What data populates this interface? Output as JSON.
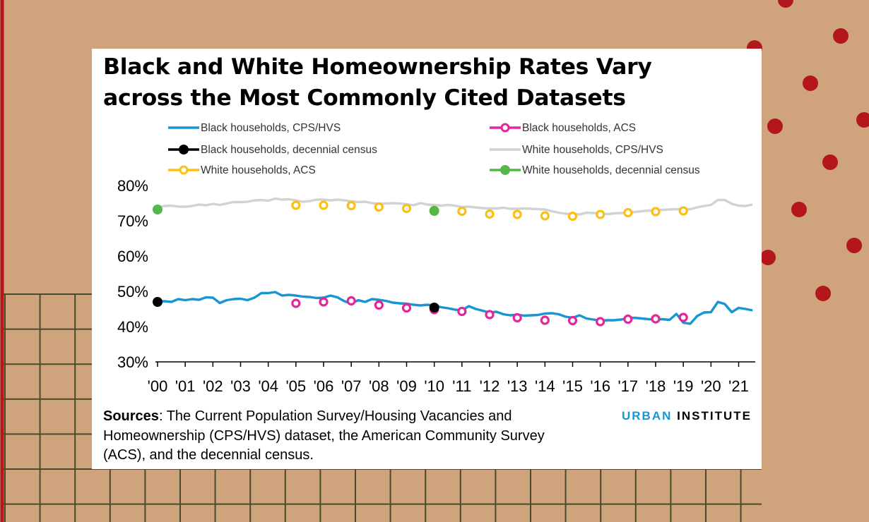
{
  "title": "Black and White Homeownership Rates Vary across the Most Commonly Cited Datasets",
  "sources": {
    "label": "Sources",
    "text": ": The Current Population Survey/Housing Vacancies and Homeownership (CPS/HVS) dataset, the American Community Survey (ACS), and the decennial census."
  },
  "logo": {
    "part1": "URBAN",
    "part2": "INSTITUTE"
  },
  "colors": {
    "black_cps": "#1696d2",
    "black_acs": "#e5259a",
    "black_census": "#000000",
    "white_cps": "#d2d2d2",
    "white_acs": "#fdbf11",
    "white_census": "#55b748",
    "background": "#cfa37c",
    "dots": "#b3161c"
  },
  "chart_data": {
    "type": "line",
    "title": "Black and White Homeownership Rates Vary across the Most Commonly Cited Datasets",
    "xlabel": "",
    "ylabel": "",
    "xlim": [
      2000,
      2021.6
    ],
    "ylim": [
      30,
      80
    ],
    "yticks": [
      30,
      40,
      50,
      60,
      70,
      80
    ],
    "ytick_labels": [
      "30%",
      "40%",
      "50%",
      "60%",
      "70%",
      "80%"
    ],
    "xticks": [
      2000,
      2001,
      2002,
      2003,
      2004,
      2005,
      2006,
      2007,
      2008,
      2009,
      2010,
      2011,
      2012,
      2013,
      2014,
      2015,
      2016,
      2017,
      2018,
      2019,
      2020,
      2021
    ],
    "xtick_labels": [
      "'00",
      "'01",
      "'02",
      "'03",
      "'04",
      "'05",
      "'06",
      "'07",
      "'08",
      "'09",
      "'10",
      "'11",
      "'12",
      "'13",
      "'14",
      "'15",
      "'16",
      "'17",
      "'18",
      "'19",
      "'20",
      "'21"
    ],
    "legend_position": "top",
    "series": [
      {
        "name": "Black households, CPS/HVS",
        "style": "line",
        "color": "#1696d2",
        "x": [
          2000,
          2000.25,
          2000.5,
          2000.75,
          2001,
          2001.25,
          2001.5,
          2001.75,
          2002,
          2002.25,
          2002.5,
          2002.75,
          2003,
          2003.25,
          2003.5,
          2003.75,
          2004,
          2004.25,
          2004.5,
          2004.75,
          2005,
          2005.25,
          2005.5,
          2005.75,
          2006,
          2006.25,
          2006.5,
          2006.75,
          2007,
          2007.25,
          2007.5,
          2007.75,
          2008,
          2008.25,
          2008.5,
          2008.75,
          2009,
          2009.25,
          2009.5,
          2009.75,
          2010,
          2010.25,
          2010.5,
          2010.75,
          2011,
          2011.25,
          2011.5,
          2011.75,
          2012,
          2012.25,
          2012.5,
          2012.75,
          2013,
          2013.25,
          2013.5,
          2013.75,
          2014,
          2014.25,
          2014.5,
          2014.75,
          2015,
          2015.25,
          2015.5,
          2015.75,
          2016,
          2016.25,
          2016.5,
          2016.75,
          2017,
          2017.25,
          2017.5,
          2017.75,
          2018,
          2018.25,
          2018.5,
          2018.75,
          2019,
          2019.25,
          2019.5,
          2019.75,
          2020,
          2020.25,
          2020.5,
          2020.75,
          2021,
          2021.25,
          2021.5
        ],
        "y": [
          47.0,
          47.2,
          47.0,
          47.8,
          47.5,
          47.8,
          47.6,
          48.3,
          48.2,
          46.7,
          47.5,
          47.8,
          47.9,
          47.5,
          48.2,
          49.5,
          49.5,
          49.8,
          48.8,
          49.0,
          48.8,
          48.5,
          48.4,
          48.1,
          48.2,
          48.8,
          48.3,
          47.2,
          46.5,
          47.5,
          47.0,
          47.8,
          47.6,
          47.3,
          46.8,
          46.6,
          46.5,
          46.2,
          46.0,
          46.2,
          46.0,
          45.5,
          45.2,
          44.8,
          44.6,
          45.8,
          45.0,
          44.5,
          44.0,
          44.2,
          43.5,
          43.2,
          43.4,
          43.1,
          43.2,
          43.3,
          43.7,
          43.8,
          43.5,
          42.8,
          42.5,
          43.2,
          42.3,
          42.0,
          41.7,
          41.8,
          41.8,
          42.0,
          42.4,
          42.5,
          42.3,
          42.1,
          42.0,
          42.1,
          41.9,
          43.6,
          41.1,
          40.8,
          43.0,
          44.0,
          44.1,
          47.0,
          46.4,
          44.1,
          45.3,
          45.0,
          44.6
        ]
      },
      {
        "name": "Black households, ACS",
        "style": "markers",
        "color": "#e5259a",
        "x": [
          2005,
          2006,
          2007,
          2008,
          2009,
          2010,
          2011,
          2012,
          2013,
          2014,
          2015,
          2016,
          2017,
          2018,
          2019
        ],
        "y": [
          46.6,
          47.0,
          47.3,
          46.1,
          45.3,
          44.8,
          44.3,
          43.4,
          42.5,
          41.8,
          41.7,
          41.4,
          42.1,
          42.2,
          42.6
        ]
      },
      {
        "name": "Black households, decennial census",
        "style": "markers",
        "color": "#000000",
        "x": [
          2000,
          2010
        ],
        "y": [
          47.0,
          45.4
        ]
      },
      {
        "name": "White households, CPS/HVS",
        "style": "line",
        "color": "#d2d2d2",
        "x": [
          2000,
          2000.25,
          2000.5,
          2000.75,
          2001,
          2001.25,
          2001.5,
          2001.75,
          2002,
          2002.25,
          2002.5,
          2002.75,
          2003,
          2003.25,
          2003.5,
          2003.75,
          2004,
          2004.25,
          2004.5,
          2004.75,
          2005,
          2005.25,
          2005.5,
          2005.75,
          2006,
          2006.25,
          2006.5,
          2006.75,
          2007,
          2007.25,
          2007.5,
          2007.75,
          2008,
          2008.25,
          2008.5,
          2008.75,
          2009,
          2009.25,
          2009.5,
          2009.75,
          2010,
          2010.25,
          2010.5,
          2010.75,
          2011,
          2011.25,
          2011.5,
          2011.75,
          2012,
          2012.25,
          2012.5,
          2012.75,
          2013,
          2013.25,
          2013.5,
          2013.75,
          2014,
          2014.25,
          2014.5,
          2014.75,
          2015,
          2015.25,
          2015.5,
          2015.75,
          2016,
          2016.25,
          2016.5,
          2016.75,
          2017,
          2017.25,
          2017.5,
          2017.75,
          2018,
          2018.25,
          2018.5,
          2018.75,
          2019,
          2019.25,
          2019.5,
          2019.75,
          2020,
          2020.25,
          2020.5,
          2020.75,
          2021,
          2021.25,
          2021.5
        ],
        "y": [
          73.8,
          74.2,
          74.3,
          74.0,
          74.0,
          74.2,
          74.6,
          74.4,
          74.8,
          74.5,
          74.9,
          75.3,
          75.3,
          75.4,
          75.8,
          75.9,
          75.7,
          76.3,
          76.0,
          76.1,
          75.8,
          75.4,
          75.6,
          76.0,
          76.0,
          75.8,
          76.0,
          75.8,
          75.5,
          75.3,
          75.4,
          75.0,
          74.8,
          74.9,
          75.0,
          74.9,
          74.7,
          74.4,
          75.0,
          74.6,
          74.5,
          74.3,
          74.5,
          74.3,
          73.9,
          74.0,
          73.8,
          73.6,
          73.5,
          73.5,
          73.7,
          73.4,
          73.4,
          73.5,
          73.4,
          73.3,
          73.2,
          72.7,
          72.3,
          72.0,
          71.9,
          71.8,
          72.3,
          72.2,
          72.2,
          71.9,
          72.1,
          72.2,
          72.3,
          72.5,
          72.7,
          72.9,
          72.9,
          73.1,
          73.2,
          73.3,
          73.2,
          73.3,
          73.8,
          74.2,
          74.5,
          75.9,
          75.9,
          74.8,
          74.3,
          74.2,
          74.6
        ]
      },
      {
        "name": "White households, ACS",
        "style": "markers",
        "color": "#fdbf11",
        "x": [
          2005,
          2006,
          2007,
          2008,
          2009,
          2010,
          2011,
          2012,
          2013,
          2014,
          2015,
          2016,
          2017,
          2018,
          2019
        ],
        "y": [
          74.4,
          74.4,
          74.3,
          73.9,
          73.5,
          73.0,
          72.7,
          71.9,
          71.8,
          71.4,
          71.3,
          71.8,
          72.3,
          72.6,
          72.8
        ]
      },
      {
        "name": "White households, decennial census",
        "style": "markers",
        "color": "#55b748",
        "x": [
          2000,
          2010
        ],
        "y": [
          73.2,
          72.8
        ]
      }
    ]
  }
}
